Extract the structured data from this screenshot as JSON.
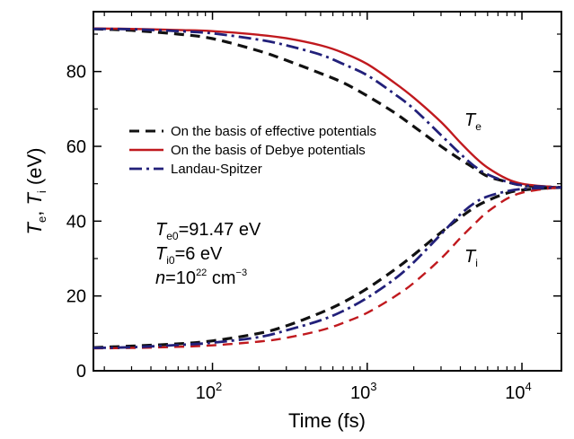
{
  "chart_data": {
    "type": "line",
    "xscale": "log",
    "xlim": [
      17,
      18000
    ],
    "ylim": [
      0,
      96
    ],
    "xlabel": "Time (fs)",
    "ylabel": {
      "T1": "T",
      "s1": "e",
      "sep": ", ",
      "T2": "T",
      "s2": "i",
      "unit": " (eV)"
    },
    "x_ticks": [
      {
        "base": "10",
        "exp": "2",
        "value": 100
      },
      {
        "base": "10",
        "exp": "3",
        "value": 1000
      },
      {
        "base": "10",
        "exp": "4",
        "value": 10000
      }
    ],
    "y_ticks": [
      0,
      20,
      40,
      60,
      80
    ],
    "legend": [
      {
        "label": "On the basis of effective potentials",
        "color": "#111111",
        "dash": "dash"
      },
      {
        "label": "On the basis of Debye potentials",
        "color": "#c0191e",
        "dash": "solid"
      },
      {
        "label": "Landau-Spitzer",
        "color": "#22207a",
        "dash": "dashdot"
      }
    ],
    "params": [
      {
        "sym": "T",
        "sub": "e0",
        "rest": "=91.47 eV"
      },
      {
        "sym": "T",
        "sub": "i0",
        "rest": "=6 eV"
      },
      {
        "sym": "n",
        "sup": "22",
        "rest1": "=10",
        "rest2": " cm",
        "sup2": "−3"
      }
    ],
    "curve_labels": [
      {
        "sym": "T",
        "sub": "e"
      },
      {
        "sym": "T",
        "sub": "i"
      }
    ],
    "series": [
      {
        "name": "Te effective potentials",
        "color": "#111111",
        "dash": "dash",
        "width": 3.2,
        "x": [
          17,
          30,
          60,
          100,
          200,
          300,
          500,
          700,
          1000,
          1500,
          2000,
          3000,
          4000,
          5000,
          6000,
          8000,
          10000,
          14000,
          18000
        ],
        "y": [
          91.4,
          91.0,
          90.0,
          88.8,
          85.5,
          83.0,
          79.5,
          77.0,
          73.5,
          69.0,
          65.3,
          60.0,
          56.5,
          54.0,
          52.0,
          50.5,
          49.6,
          49.2,
          49.0
        ]
      },
      {
        "name": "Te Debye potentials",
        "color": "#c0191e",
        "dash": "solid",
        "width": 2.4,
        "x": [
          17,
          30,
          60,
          100,
          200,
          300,
          500,
          700,
          1000,
          1500,
          2000,
          3000,
          4000,
          5000,
          6000,
          8000,
          10000,
          14000,
          18000
        ],
        "y": [
          91.5,
          91.4,
          91.1,
          90.8,
          89.8,
          88.9,
          87.0,
          85.0,
          82.0,
          77.0,
          73.0,
          66.5,
          61.0,
          57.0,
          54.3,
          51.3,
          50.0,
          49.3,
          49.0
        ]
      },
      {
        "name": "Te Landau-Spitzer",
        "color": "#22207a",
        "dash": "dashdot",
        "width": 2.8,
        "x": [
          17,
          30,
          60,
          100,
          200,
          300,
          500,
          700,
          1000,
          1500,
          2000,
          3000,
          4000,
          5000,
          6000,
          8000,
          10000,
          14000,
          18000
        ],
        "y": [
          91.4,
          91.3,
          90.8,
          90.2,
          88.5,
          87.0,
          84.5,
          82.0,
          79.0,
          74.0,
          70.0,
          63.0,
          58.0,
          54.5,
          52.5,
          50.5,
          49.6,
          49.2,
          49.0
        ]
      },
      {
        "name": "Ti effective potentials",
        "color": "#111111",
        "dash": "dash",
        "width": 3.2,
        "x": [
          17,
          30,
          60,
          100,
          200,
          300,
          500,
          700,
          1000,
          1500,
          2000,
          3000,
          4000,
          5000,
          6000,
          8000,
          10000,
          14000,
          18000
        ],
        "y": [
          6.2,
          6.6,
          7.2,
          8.0,
          10.0,
          12.0,
          15.5,
          18.3,
          22.0,
          27.0,
          31.0,
          37.0,
          41.0,
          43.8,
          45.5,
          47.5,
          48.3,
          48.8,
          49.0
        ]
      },
      {
        "name": "Ti Debye potentials",
        "color": "#c0191e",
        "dash": "dash",
        "width": 2.4,
        "x": [
          17,
          30,
          60,
          100,
          200,
          300,
          500,
          700,
          1000,
          1500,
          2000,
          3000,
          4000,
          5000,
          6000,
          8000,
          10000,
          14000,
          18000
        ],
        "y": [
          6.0,
          6.1,
          6.4,
          6.8,
          7.8,
          8.8,
          10.8,
          12.8,
          15.5,
          19.8,
          23.5,
          30.0,
          35.5,
          39.5,
          42.5,
          46.0,
          47.6,
          48.6,
          49.0
        ]
      },
      {
        "name": "Ti Landau-Spitzer",
        "color": "#22207a",
        "dash": "dashdot",
        "width": 2.8,
        "x": [
          17,
          30,
          60,
          100,
          200,
          300,
          500,
          700,
          1000,
          1500,
          2000,
          3000,
          4000,
          5000,
          6000,
          8000,
          10000,
          14000,
          18000
        ],
        "y": [
          6.1,
          6.3,
          6.9,
          7.5,
          9.0,
          10.8,
          13.5,
          16.0,
          19.5,
          24.5,
          29.0,
          36.5,
          41.8,
          45.0,
          46.6,
          48.0,
          48.6,
          48.9,
          49.0
        ]
      }
    ]
  }
}
